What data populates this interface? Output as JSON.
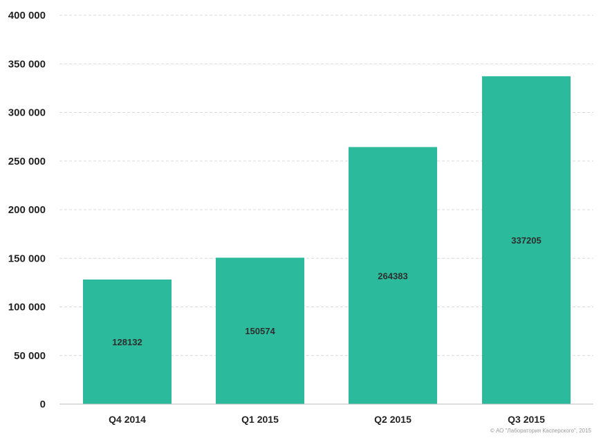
{
  "chart_data": {
    "type": "bar",
    "categories": [
      "Q4 2014",
      "Q1 2015",
      "Q2 2015",
      "Q3 2015"
    ],
    "values": [
      128132,
      150574,
      264383,
      337205
    ],
    "value_labels": [
      "128132",
      "150574",
      "264383",
      "337205"
    ],
    "y_ticks": [
      0,
      50000,
      100000,
      150000,
      200000,
      250000,
      300000,
      350000,
      400000
    ],
    "y_tick_labels": [
      "0",
      "50 000",
      "100 000",
      "150 000",
      "200 000",
      "250 000",
      "300 000",
      "350 000",
      "400 000"
    ],
    "ylim": [
      0,
      400000
    ],
    "grid": true,
    "title": "",
    "xlabel": "",
    "ylabel": "",
    "bar_color": "#2bbb9c",
    "grid_color": "#d9d9d9"
  },
  "footer": {
    "copyright": "© АО \"Лаборатория Касперского\", 2015"
  }
}
